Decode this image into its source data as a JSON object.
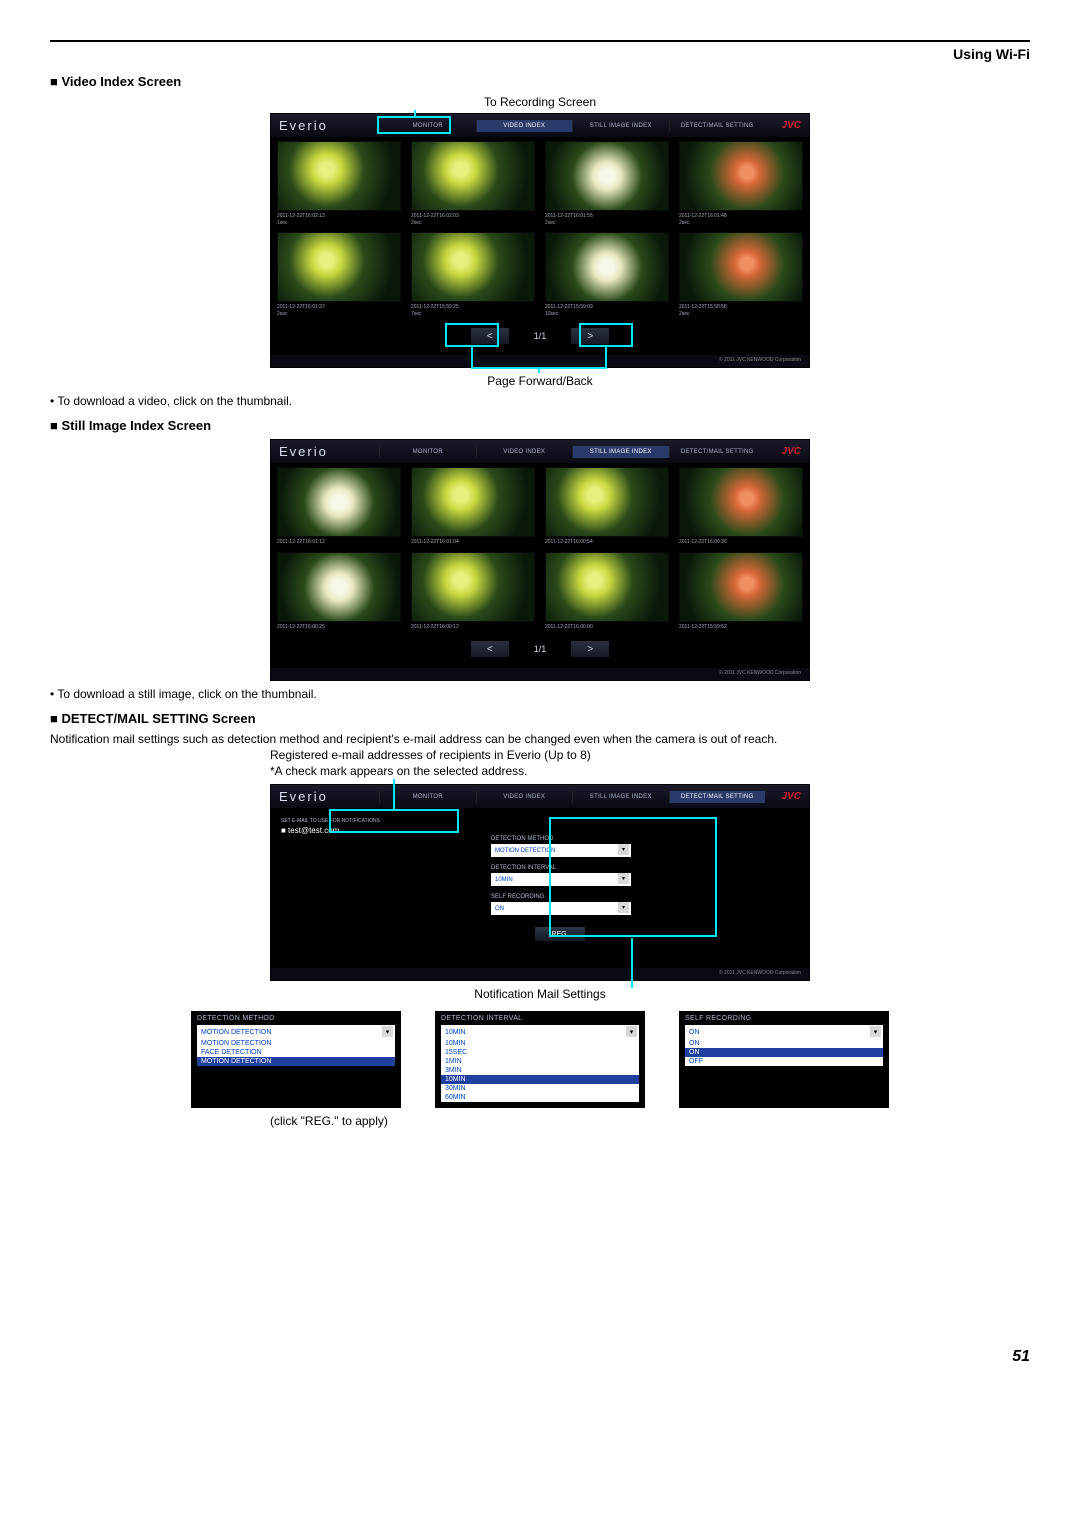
{
  "header": {
    "section_title": "Using Wi-Fi"
  },
  "page_number": "51",
  "sections": {
    "video": {
      "title": "Video Index Screen",
      "caption_top": "To Recording Screen",
      "caption_bottom": "Page Forward/Back",
      "bullet": "To download a video, click on the thumbnail."
    },
    "still": {
      "title": "Still Image Index Screen",
      "bullet": "To download a still image, click on the thumbnail."
    },
    "detect": {
      "title": "DETECT/MAIL SETTING Screen",
      "intro": "Notification mail settings such as detection method and recipient's e-mail address can be changed even when the camera is out of reach.",
      "note1": "Registered e-mail addresses of recipients in Everio (Up to 8)",
      "note2": "*A check mark appears on the selected address.",
      "caption_bottom": "Notification Mail Settings",
      "apply_note": "(click \"REG.\" to apply)"
    }
  },
  "ui": {
    "logo": "Everio",
    "brand": "JVC",
    "tabs": {
      "monitor": "MONITOR",
      "video": "VIDEO INDEX",
      "still": "STILL IMAGE INDEX",
      "detect": "DETECT/MAIL SETTING"
    },
    "pager": {
      "prev": "<",
      "next": ">",
      "page": "1/1"
    },
    "copyright": "© 2011 JVC KENWOOD Corporation"
  },
  "video_thumbs": [
    {
      "ts": "2011-12-22T16:02:13",
      "dur": "1sec"
    },
    {
      "ts": "2011-12-22T16:02:03",
      "dur": "2sec"
    },
    {
      "ts": "2011-12-22T16:01:55",
      "dur": "2sec"
    },
    {
      "ts": "2011-12-22T16:01:48",
      "dur": "2sec"
    },
    {
      "ts": "2011-12-22T16:01:37",
      "dur": "2sec"
    },
    {
      "ts": "2011-12-22T15:59:25",
      "dur": "7sec"
    },
    {
      "ts": "2011-12-22T15:59:09",
      "dur": "10sec"
    },
    {
      "ts": "2011-12-22T15:58:58",
      "dur": "2sec"
    }
  ],
  "still_thumbs": [
    {
      "ts": "2011-12-22T16:01:12"
    },
    {
      "ts": "2011-12-22T16:01:04"
    },
    {
      "ts": "2011-12-22T16:00:54"
    },
    {
      "ts": "2011-12-22T16:00:36"
    },
    {
      "ts": "2011-12-22T16:00:25"
    },
    {
      "ts": "2011-12-22T16:00:12"
    },
    {
      "ts": "2011-12-22T16:00:00"
    },
    {
      "ts": "2011-12-22T15:59:52"
    }
  ],
  "detect_panel": {
    "email_head": "SET E-MAIL TO USE FOR NOTIFICATIONS",
    "email": "■ test@test.com",
    "method_label": "DETECTION METHOD",
    "method_value": "MOTION DETECTION",
    "interval_label": "DETECTION INTERVAL",
    "interval_value": "10MIN",
    "self_label": "SELF RECORDING",
    "self_value": "ON",
    "reg": "REG."
  },
  "settings_panels": {
    "method": {
      "head": "DETECTION METHOD",
      "selected": "MOTION DETECTION",
      "options": [
        "MOTION DETECTION",
        "FACE DETECTION",
        "MOTION DETECTION"
      ]
    },
    "interval": {
      "head": "DETECTION INTERVAL",
      "selected": "10MIN",
      "options": [
        "10MIN",
        "15SEC",
        "1MIN",
        "3MIN",
        "10MIN",
        "30MIN",
        "60MIN"
      ]
    },
    "self": {
      "head": "SELF RECORDING",
      "selected": "ON",
      "options": [
        "ON",
        "ON",
        "OFF"
      ]
    }
  },
  "colors": {
    "highlight": "#00e8ff",
    "link_blue": "#0040c0",
    "brand_red": "#d02030"
  }
}
